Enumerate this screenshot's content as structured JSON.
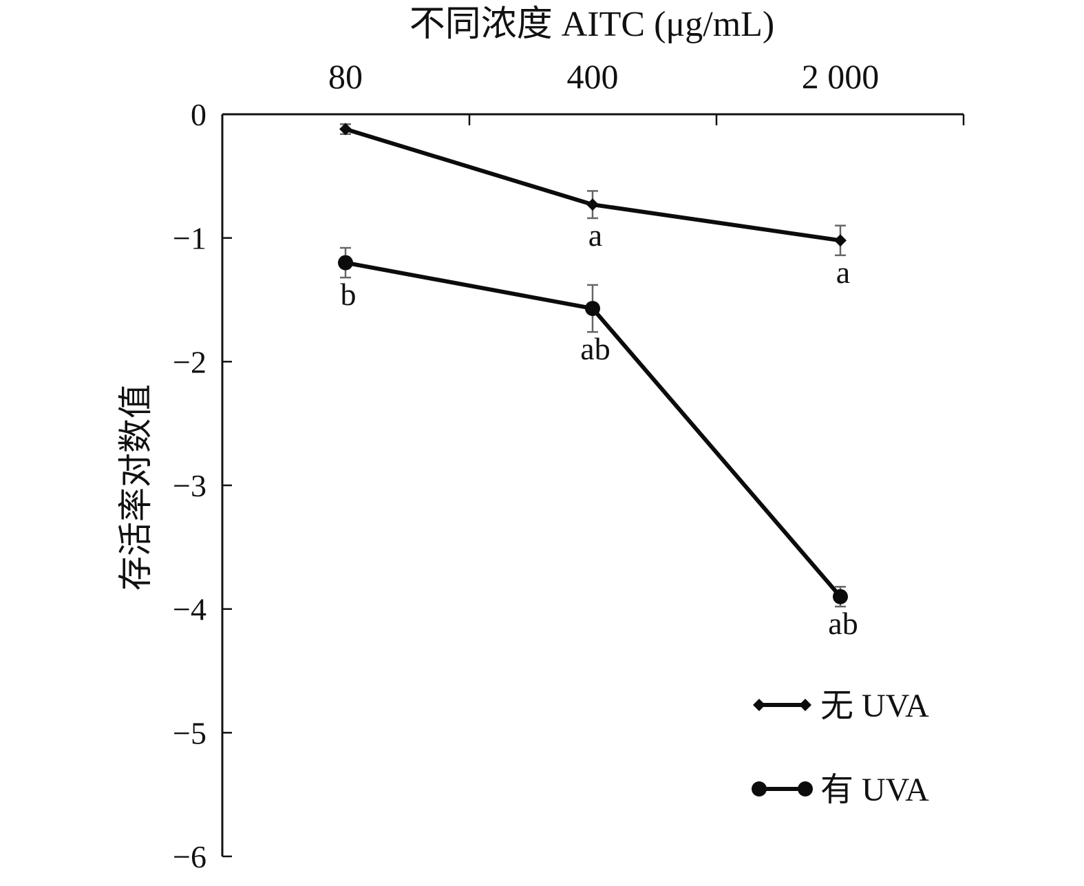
{
  "chart_data": {
    "type": "line",
    "title": "",
    "xlabel": "不同浓度 AITC (μg/mL)",
    "ylabel": "存活率对数值",
    "categories": [
      "80",
      "400",
      "2 000"
    ],
    "ylim": [
      -6,
      0
    ],
    "yticks": [
      "0",
      "−1",
      "−2",
      "−3",
      "−4",
      "−5",
      "−6"
    ],
    "x_axis_position": "top",
    "grid": false,
    "legend_position": "bottom-right",
    "series": [
      {
        "name": "无 UVA",
        "marker": "diamond",
        "values": [
          -0.12,
          -0.73,
          -1.02
        ],
        "errors": [
          0.04,
          0.11,
          0.12
        ],
        "labels": [
          "",
          "a",
          "a"
        ]
      },
      {
        "name": "有 UVA",
        "marker": "circle",
        "values": [
          -1.2,
          -1.57,
          -3.9
        ],
        "errors": [
          0.12,
          0.19,
          0.08
        ],
        "labels": [
          "b",
          "ab",
          "ab"
        ]
      }
    ],
    "colors": {
      "line": "#0c0c0c",
      "error_bar": "#666666",
      "text": "#111111"
    }
  }
}
